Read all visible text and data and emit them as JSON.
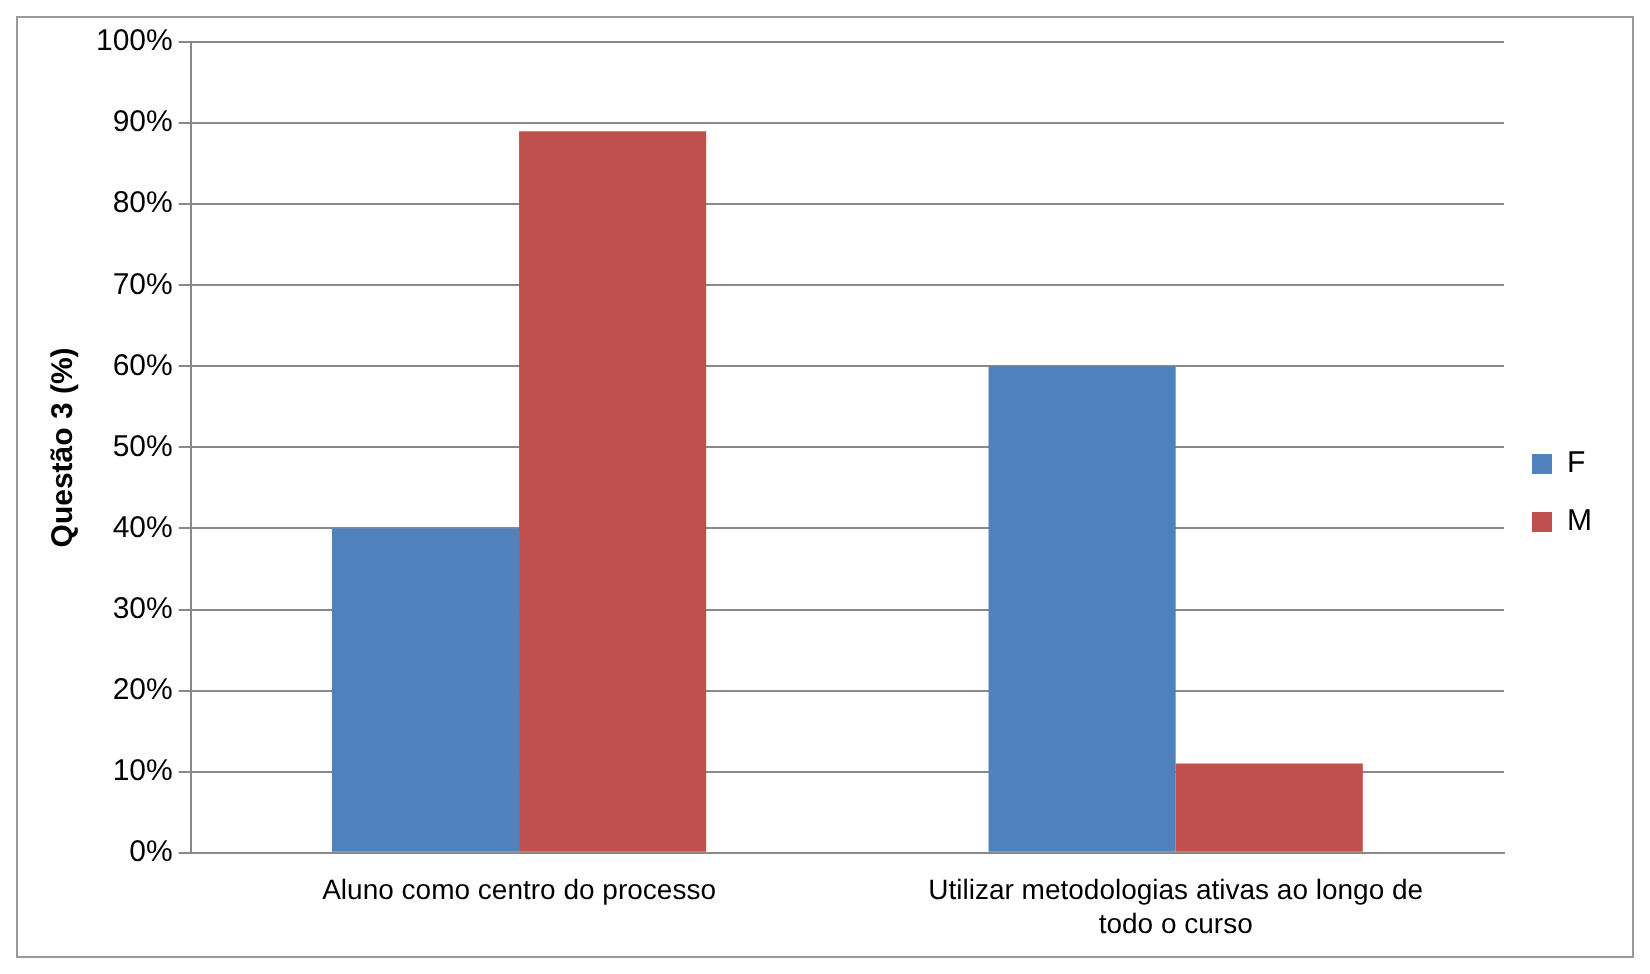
{
  "chart_data": {
    "type": "bar",
    "ylabel": "Questão 3 (%)",
    "categories": [
      "Aluno como centro do processo",
      "Utilizar metodologias ativas ao longo de todo o curso"
    ],
    "series": [
      {
        "name": "F",
        "color": "#4f81bd",
        "values": [
          40,
          60
        ]
      },
      {
        "name": "M",
        "color": "#c0504d",
        "values": [
          89,
          11
        ]
      }
    ],
    "ylim": [
      0,
      100
    ],
    "yticks": [
      {
        "value": 0,
        "label": "0%"
      },
      {
        "value": 10,
        "label": "10%"
      },
      {
        "value": 20,
        "label": "20%"
      },
      {
        "value": 30,
        "label": "30%"
      },
      {
        "value": 40,
        "label": "40%"
      },
      {
        "value": 50,
        "label": "50%"
      },
      {
        "value": 60,
        "label": "60%"
      },
      {
        "value": 70,
        "label": "70%"
      },
      {
        "value": 80,
        "label": "80%"
      },
      {
        "value": 90,
        "label": "90%"
      },
      {
        "value": 100,
        "label": "100%"
      }
    ],
    "grid": "y",
    "legend": "right"
  }
}
